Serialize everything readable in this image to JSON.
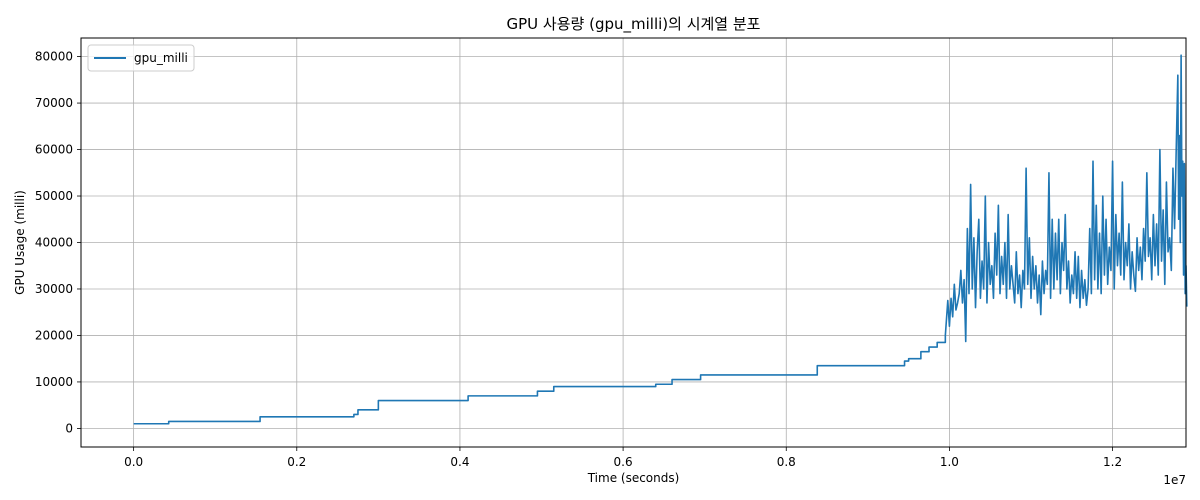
{
  "chart_data": {
    "type": "line",
    "title": "GPU 사용량 (gpu_milli)의 시계열 분포",
    "xlabel": "Time (seconds)",
    "ylabel": "GPU Usage (milli)",
    "x_offset_label": "1e7",
    "xlim": [
      -645000.0,
      12900000.0
    ],
    "ylim": [
      -4000,
      84000
    ],
    "x_ticks": [
      0,
      2000000,
      4000000,
      6000000,
      8000000,
      10000000,
      12000000
    ],
    "x_tick_labels": [
      "0.0",
      "0.2",
      "0.4",
      "0.6",
      "0.8",
      "1.0",
      "1.2"
    ],
    "y_ticks": [
      0,
      10000,
      20000,
      30000,
      40000,
      50000,
      60000,
      70000,
      80000
    ],
    "y_tick_labels": [
      "0",
      "10000",
      "20000",
      "30000",
      "40000",
      "50000",
      "60000",
      "70000",
      "80000"
    ],
    "grid": true,
    "legend": {
      "position": "upper-left",
      "entries": [
        "gpu_milli"
      ]
    },
    "colors": {
      "series": "#1f77b4",
      "grid": "#b0b0b0",
      "axis": "#000000"
    },
    "series": [
      {
        "name": "gpu_milli",
        "steps": [
          [
            0,
            1000
          ],
          [
            430000,
            1500
          ],
          [
            1550000,
            2500
          ],
          [
            2700000,
            3000
          ],
          [
            2750000,
            4000
          ],
          [
            3000000,
            6000
          ],
          [
            4100000,
            7000
          ],
          [
            4950000,
            8000
          ],
          [
            5150000,
            9000
          ],
          [
            6400000,
            9500
          ],
          [
            6600000,
            10500
          ],
          [
            6950000,
            11500
          ],
          [
            8380000,
            13500
          ],
          [
            9450000,
            14500
          ],
          [
            9500000,
            15000
          ],
          [
            9650000,
            16500
          ],
          [
            9750000,
            17500
          ],
          [
            9850000,
            18500
          ],
          [
            9950000,
            20000
          ]
        ],
        "points": [
          [
            9980000,
            27500
          ],
          [
            10000000,
            22000
          ],
          [
            10020000,
            28000
          ],
          [
            10040000,
            24000
          ],
          [
            10060000,
            31000
          ],
          [
            10080000,
            25500
          ],
          [
            10100000,
            27000
          ],
          [
            10120000,
            29000
          ],
          [
            10140000,
            34000
          ],
          [
            10160000,
            27000
          ],
          [
            10180000,
            32000
          ],
          [
            10200000,
            18700
          ],
          [
            10220000,
            43000
          ],
          [
            10240000,
            29000
          ],
          [
            10260000,
            52500
          ],
          [
            10280000,
            30000
          ],
          [
            10300000,
            41000
          ],
          [
            10320000,
            26000
          ],
          [
            10340000,
            38000
          ],
          [
            10360000,
            45000
          ],
          [
            10380000,
            28000
          ],
          [
            10400000,
            36000
          ],
          [
            10420000,
            30000
          ],
          [
            10440000,
            50000
          ],
          [
            10460000,
            27000
          ],
          [
            10480000,
            40000
          ],
          [
            10500000,
            31000
          ],
          [
            10520000,
            35000
          ],
          [
            10540000,
            28000
          ],
          [
            10560000,
            42000
          ],
          [
            10580000,
            33000
          ],
          [
            10600000,
            48000
          ],
          [
            10620000,
            29000
          ],
          [
            10640000,
            37000
          ],
          [
            10660000,
            31000
          ],
          [
            10680000,
            40000
          ],
          [
            10700000,
            28000
          ],
          [
            10720000,
            46000
          ],
          [
            10740000,
            30000
          ],
          [
            10760000,
            35000
          ],
          [
            10800000,
            27000
          ],
          [
            10820000,
            38000
          ],
          [
            10840000,
            29000
          ],
          [
            10860000,
            33000
          ],
          [
            10880000,
            26000
          ],
          [
            10900000,
            34000
          ],
          [
            10920000,
            30000
          ],
          [
            10940000,
            56000
          ],
          [
            10960000,
            31000
          ],
          [
            10980000,
            41000
          ],
          [
            11000000,
            28000
          ],
          [
            11020000,
            37000
          ],
          [
            11040000,
            30000
          ],
          [
            11060000,
            35000
          ],
          [
            11080000,
            27000
          ],
          [
            11100000,
            33000
          ],
          [
            11120000,
            24500
          ],
          [
            11140000,
            36000
          ],
          [
            11160000,
            29000
          ],
          [
            11180000,
            34000
          ],
          [
            11200000,
            31000
          ],
          [
            11220000,
            55000
          ],
          [
            11240000,
            28000
          ],
          [
            11260000,
            45000
          ],
          [
            11280000,
            30000
          ],
          [
            11300000,
            42000
          ],
          [
            11320000,
            32000
          ],
          [
            11340000,
            45000
          ],
          [
            11360000,
            29000
          ],
          [
            11380000,
            40000
          ],
          [
            11400000,
            34000
          ],
          [
            11420000,
            46000
          ],
          [
            11440000,
            30000
          ],
          [
            11460000,
            36000
          ],
          [
            11480000,
            27000
          ],
          [
            11500000,
            33000
          ],
          [
            11520000,
            29000
          ],
          [
            11540000,
            38000
          ],
          [
            11560000,
            28000
          ],
          [
            11580000,
            37000
          ],
          [
            11600000,
            26000
          ],
          [
            11620000,
            34000
          ],
          [
            11640000,
            28000
          ],
          [
            11660000,
            32000
          ],
          [
            11680000,
            26500
          ],
          [
            11700000,
            30000
          ],
          [
            11720000,
            43000
          ],
          [
            11740000,
            29000
          ],
          [
            11760000,
            57500
          ],
          [
            11780000,
            32000
          ],
          [
            11800000,
            48000
          ],
          [
            11820000,
            30000
          ],
          [
            11840000,
            42000
          ],
          [
            11860000,
            29000
          ],
          [
            11880000,
            50000
          ],
          [
            11900000,
            33000
          ],
          [
            11920000,
            45000
          ],
          [
            11940000,
            31000
          ],
          [
            11960000,
            39000
          ],
          [
            11980000,
            34000
          ],
          [
            12000000,
            57500
          ],
          [
            12020000,
            30000
          ],
          [
            12040000,
            46000
          ],
          [
            12060000,
            35000
          ],
          [
            12080000,
            42000
          ],
          [
            12100000,
            33000
          ],
          [
            12120000,
            53000
          ],
          [
            12140000,
            32000
          ],
          [
            12160000,
            40000
          ],
          [
            12180000,
            35000
          ],
          [
            12200000,
            44000
          ],
          [
            12220000,
            30000
          ],
          [
            12240000,
            38000
          ],
          [
            12260000,
            33000
          ],
          [
            12280000,
            29500
          ],
          [
            12300000,
            41000
          ],
          [
            12320000,
            34000
          ],
          [
            12340000,
            39000
          ],
          [
            12360000,
            32000
          ],
          [
            12380000,
            43000
          ],
          [
            12400000,
            36000
          ],
          [
            12420000,
            55000
          ],
          [
            12440000,
            37000
          ],
          [
            12460000,
            41000
          ],
          [
            12480000,
            32000
          ],
          [
            12500000,
            46000
          ],
          [
            12520000,
            35000
          ],
          [
            12540000,
            44000
          ],
          [
            12560000,
            33000
          ],
          [
            12580000,
            60000
          ],
          [
            12600000,
            36000
          ],
          [
            12620000,
            47000
          ],
          [
            12640000,
            31000
          ],
          [
            12660000,
            53000
          ],
          [
            12680000,
            38000
          ],
          [
            12700000,
            41000
          ],
          [
            12720000,
            34000
          ],
          [
            12740000,
            56000
          ],
          [
            12760000,
            43000
          ],
          [
            12780000,
            60000
          ],
          [
            12800000,
            76000
          ],
          [
            12810000,
            45000
          ],
          [
            12820000,
            63000
          ],
          [
            12830000,
            40000
          ],
          [
            12840000,
            80300
          ],
          [
            12850000,
            50000
          ],
          [
            12860000,
            57500
          ],
          [
            12870000,
            33000
          ],
          [
            12880000,
            57000
          ],
          [
            12890000,
            29000
          ],
          [
            12900000,
            35000
          ],
          [
            12910000,
            26200
          ]
        ]
      }
    ]
  }
}
